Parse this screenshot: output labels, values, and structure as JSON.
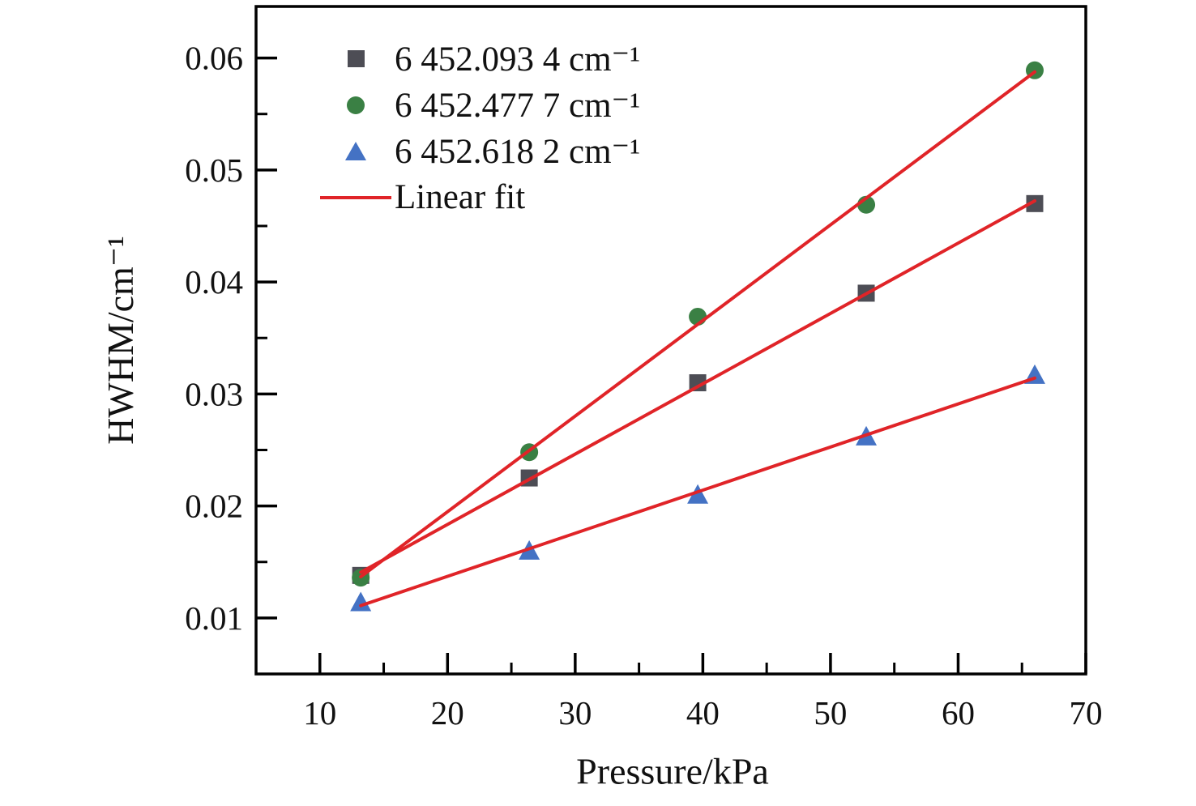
{
  "figure": {
    "background": "#ffffff",
    "text_color": "#111111",
    "axis_color": "#000000"
  },
  "chart_data": {
    "type": "scatter",
    "title": "",
    "xlabel": "Pressure/kPa",
    "ylabel": "HWHM/cm⁻¹",
    "x": [
      13.2,
      26.4,
      39.6,
      52.8,
      66.0
    ],
    "series": [
      {
        "name": "6 452.093 4 cm⁻¹",
        "marker": "square",
        "color": "#4d4d55",
        "values": [
          0.0138,
          0.0225,
          0.031,
          0.039,
          0.047
        ]
      },
      {
        "name": "6 452.477 7 cm⁻¹",
        "marker": "circle",
        "color": "#3a8044",
        "values": [
          0.0136,
          0.0248,
          0.0369,
          0.0469,
          0.0589
        ]
      },
      {
        "name": "6 452.618 2 cm⁻¹",
        "marker": "triangle",
        "color": "#4472c4",
        "values": [
          0.0114,
          0.016,
          0.021,
          0.0262,
          0.0317
        ]
      }
    ],
    "fit": {
      "label": "Linear fit",
      "color": "#e02428",
      "span": "data-range"
    },
    "xlim": [
      5,
      70
    ],
    "ylim": [
      0.005,
      0.0646
    ],
    "x_ticks": [
      10,
      20,
      30,
      40,
      50,
      60,
      70
    ],
    "x_minor_ticks": [
      15,
      25,
      35,
      45,
      55,
      65
    ],
    "y_ticks": [
      0.01,
      0.02,
      0.03,
      0.04,
      0.05,
      0.06
    ],
    "y_tick_labels": [
      "0.01",
      "0.02",
      "0.03",
      "0.04",
      "0.05",
      "0.06"
    ],
    "y_minor_ticks": [
      0.015,
      0.025,
      0.035,
      0.045,
      0.055
    ],
    "grid": false,
    "legend_position": "upper-left-inside",
    "ticks_direction": "in"
  }
}
